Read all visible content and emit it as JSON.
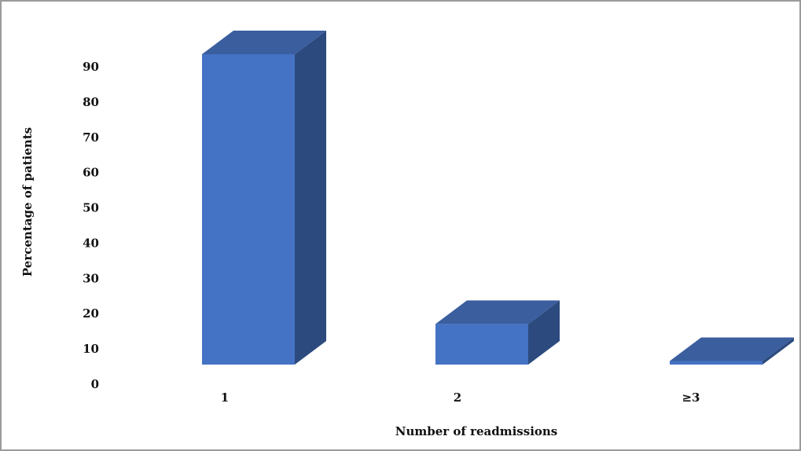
{
  "chart_data": {
    "type": "bar",
    "style": "3d-column",
    "categories": [
      "1",
      "2",
      "≥3"
    ],
    "values": [
      88,
      11.5,
      1
    ],
    "xlabel": "Number of readmissions",
    "ylabel": "Percentage of patients",
    "ylim": [
      0,
      90
    ],
    "yticks": [
      0,
      10,
      20,
      30,
      40,
      50,
      60,
      70,
      80,
      90
    ],
    "grid": false,
    "legend": "none",
    "colors": {
      "front": "#4472c4",
      "top": "#3a5e9e",
      "side": "#2c4a7e",
      "border": "#9a9a9a"
    }
  }
}
